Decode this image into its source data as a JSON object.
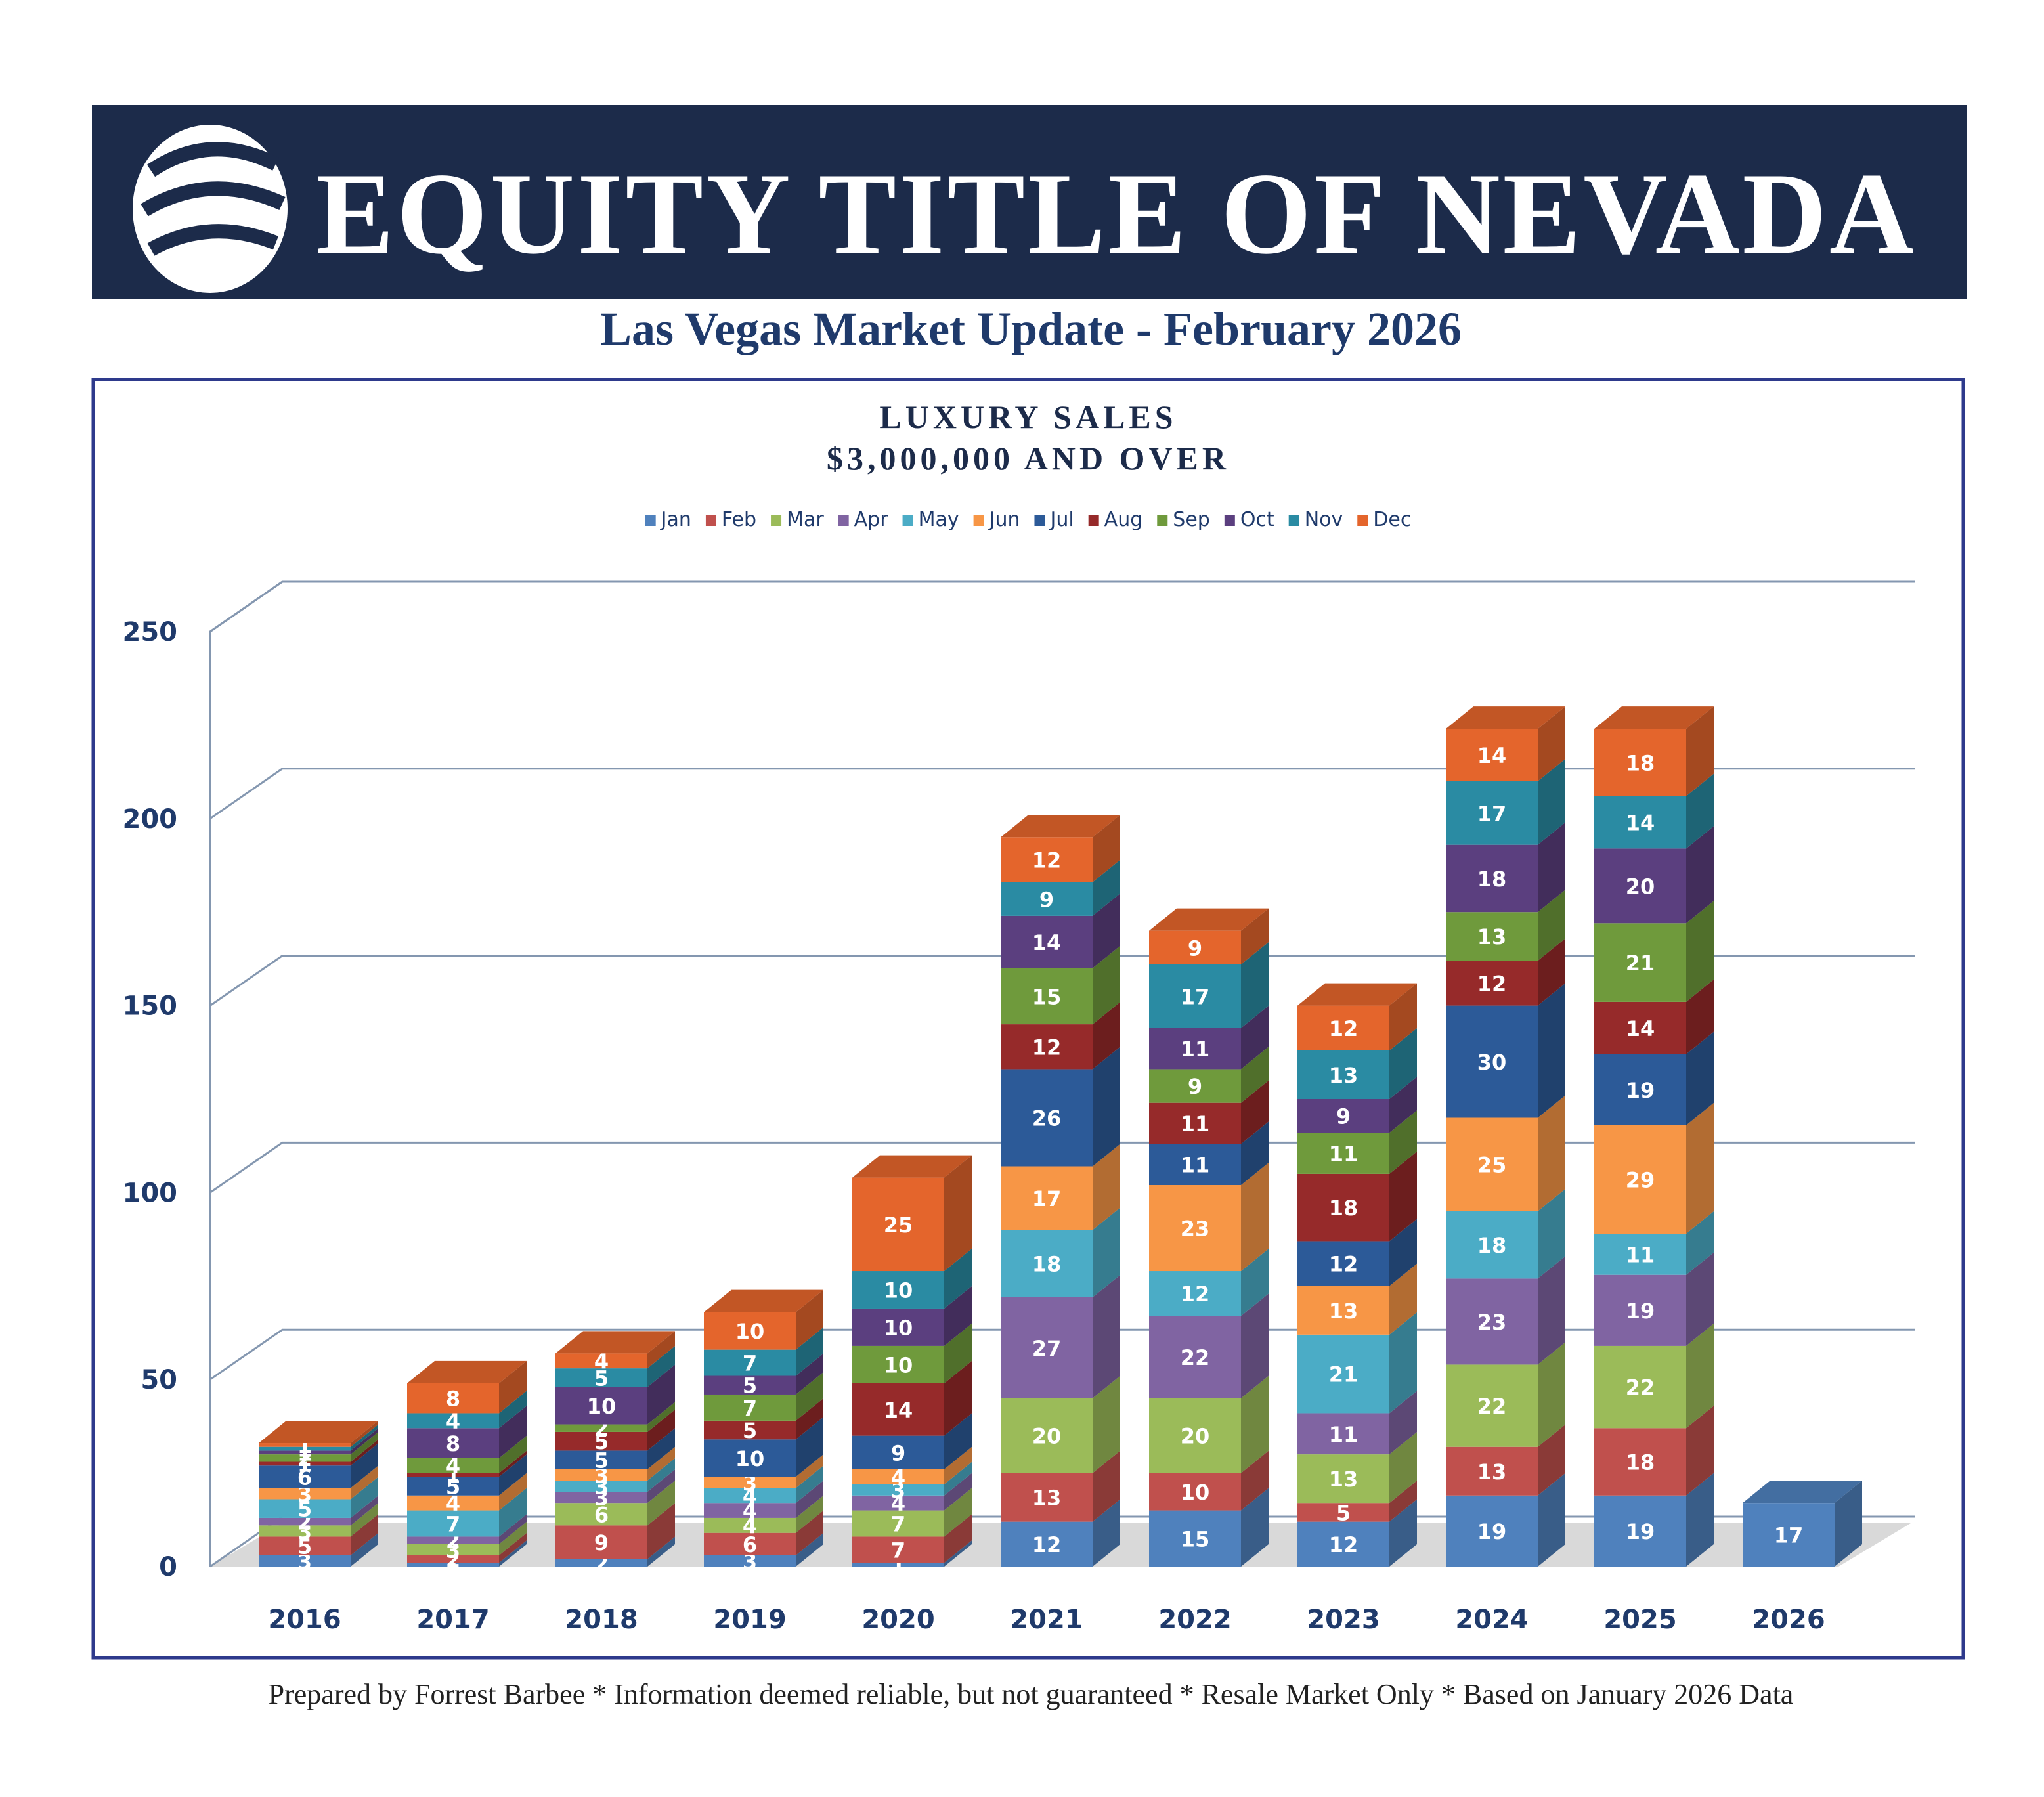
{
  "header": {
    "title": "EQUITY TITLE OF NEVADA",
    "subtitle": "Las Vegas Market Update - February 2026"
  },
  "chart_data": {
    "type": "bar",
    "stacked": true,
    "title": "LUXURY SALES",
    "subtitle": "$3,000,000 AND OVER",
    "categories": [
      "2016",
      "2017",
      "2018",
      "2019",
      "2020",
      "2021",
      "2022",
      "2023",
      "2024",
      "2025",
      "2026"
    ],
    "series": [
      {
        "name": "Jan",
        "color": "#4f81bd",
        "values": [
          3,
          1,
          2,
          3,
          1,
          12,
          15,
          12,
          19,
          19,
          17
        ]
      },
      {
        "name": "Feb",
        "color": "#c0504d",
        "values": [
          5,
          2,
          9,
          6,
          7,
          13,
          10,
          5,
          13,
          18,
          null
        ]
      },
      {
        "name": "Mar",
        "color": "#9bbb59",
        "values": [
          3,
          3,
          6,
          4,
          7,
          20,
          20,
          13,
          22,
          22,
          null
        ]
      },
      {
        "name": "Apr",
        "color": "#8064a2",
        "values": [
          2,
          2,
          3,
          4,
          4,
          27,
          22,
          11,
          23,
          19,
          null
        ]
      },
      {
        "name": "May",
        "color": "#4bacc6",
        "values": [
          5,
          7,
          3,
          4,
          3,
          18,
          12,
          21,
          18,
          11,
          null
        ]
      },
      {
        "name": "Jun",
        "color": "#f79646",
        "values": [
          3,
          4,
          3,
          3,
          4,
          17,
          23,
          13,
          25,
          29,
          null
        ]
      },
      {
        "name": "Jul",
        "color": "#2c5a98",
        "values": [
          6,
          5,
          5,
          10,
          9,
          26,
          11,
          12,
          30,
          19,
          null
        ]
      },
      {
        "name": "Aug",
        "color": "#962a2a",
        "values": [
          1,
          1,
          5,
          5,
          14,
          12,
          11,
          18,
          12,
          14,
          null
        ]
      },
      {
        "name": "Sep",
        "color": "#6f9a3c",
        "values": [
          2,
          4,
          2,
          7,
          10,
          15,
          9,
          11,
          13,
          21,
          null
        ]
      },
      {
        "name": "Oct",
        "color": "#5b3f7f",
        "values": [
          1,
          8,
          10,
          5,
          10,
          14,
          11,
          9,
          18,
          20,
          null
        ]
      },
      {
        "name": "Nov",
        "color": "#2a8ba3",
        "values": [
          1,
          4,
          5,
          7,
          10,
          9,
          17,
          13,
          17,
          14,
          null
        ]
      },
      {
        "name": "Dec",
        "color": "#e4652c",
        "values": [
          1,
          8,
          4,
          10,
          25,
          12,
          9,
          12,
          14,
          18,
          null
        ]
      }
    ],
    "ylim": [
      0,
      250
    ],
    "yticks": [
      0,
      50,
      100,
      150,
      200,
      250
    ],
    "grid": true,
    "legend": "top"
  },
  "footer": "Prepared by Forrest Barbee * Information deemed reliable, but not guaranteed * Resale Market Only * Based on January 2026 Data"
}
